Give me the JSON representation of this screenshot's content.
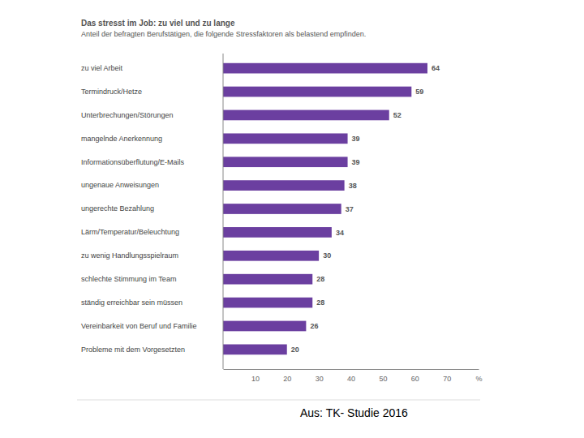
{
  "chart_data": {
    "type": "bar",
    "orientation": "horizontal",
    "title": "Das stresst im Job: zu viel und zu lange",
    "subtitle": "Anteil der befragten Berufstätigen, die folgende Stressfaktoren als belastend empfinden.",
    "categories": [
      "zu viel Arbeit",
      "Termindruck/Hetze",
      "Unterbrechungen/Störungen",
      "mangelnde Anerkennung",
      "Informationsüberflutung/E-Mails",
      "ungenaue Anweisungen",
      "ungerechte Bezahlung",
      "Lärm/Temperatur/Beleuchtung",
      "zu wenig Handlungsspielraum",
      "schlechte Stimmung im Team",
      "ständig erreichbar sein müssen",
      "Vereinbarkeit von Beruf und Familie",
      "Probleme mit dem Vorgesetzten"
    ],
    "values": [
      64,
      59,
      52,
      39,
      39,
      38,
      37,
      34,
      30,
      28,
      28,
      26,
      20
    ],
    "color": "#6b3fa0",
    "xlim": [
      0,
      80
    ],
    "xticks": [
      10,
      20,
      30,
      40,
      50,
      60,
      70,
      {
        "value": 80,
        "label": "%"
      }
    ],
    "grid": false,
    "data_labels": true,
    "annotations": [
      "Aus: TK- Studie 2016"
    ]
  }
}
